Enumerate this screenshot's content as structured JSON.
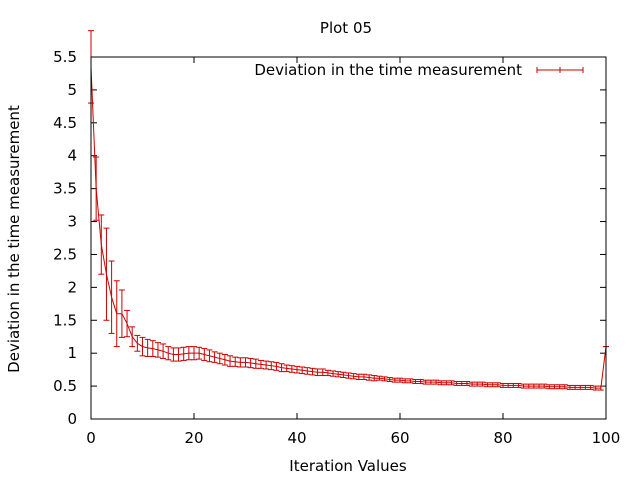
{
  "chart_data": {
    "type": "line",
    "title": "Plot 05",
    "xlabel": "Iteration Values",
    "ylabel": "Deviation in the time measurement",
    "xlim": [
      0,
      100
    ],
    "ylim": [
      0,
      5.5
    ],
    "xticks": [
      "0",
      "20",
      "40",
      "60",
      "80",
      "100"
    ],
    "yticks": [
      "0",
      "0.5",
      "1",
      "1.5",
      "2",
      "2.5",
      "3",
      "3.5",
      "4",
      "4.5",
      "5",
      "5.5"
    ],
    "legend_position": "top-right",
    "series": [
      {
        "name": "Deviation in the time measurement",
        "color": "#cc0000",
        "style": "error bars with connecting line",
        "x": [
          0,
          1,
          2,
          3,
          4,
          5,
          6,
          7,
          8,
          9,
          10,
          11,
          12,
          13,
          14,
          15,
          16,
          17,
          18,
          19,
          20,
          21,
          22,
          23,
          24,
          25,
          26,
          27,
          28,
          29,
          30,
          31,
          32,
          33,
          34,
          35,
          36,
          37,
          38,
          39,
          40,
          41,
          42,
          43,
          44,
          45,
          46,
          47,
          48,
          49,
          50,
          51,
          52,
          53,
          54,
          55,
          56,
          57,
          58,
          59,
          60,
          61,
          62,
          63,
          64,
          65,
          66,
          67,
          68,
          69,
          70,
          71,
          72,
          73,
          74,
          75,
          76,
          77,
          78,
          79,
          80,
          81,
          82,
          83,
          84,
          85,
          86,
          87,
          88,
          89,
          90,
          91,
          92,
          93,
          94,
          95,
          96,
          97,
          98,
          99,
          100
        ],
        "y": [
          5.35,
          3.5,
          2.65,
          2.2,
          1.85,
          1.6,
          1.6,
          1.45,
          1.25,
          1.15,
          1.1,
          1.08,
          1.07,
          1.05,
          1.03,
          1.0,
          0.98,
          0.98,
          0.99,
          1.0,
          1.0,
          1.0,
          0.98,
          0.96,
          0.94,
          0.92,
          0.9,
          0.88,
          0.87,
          0.86,
          0.86,
          0.85,
          0.84,
          0.83,
          0.82,
          0.81,
          0.8,
          0.78,
          0.77,
          0.76,
          0.75,
          0.74,
          0.73,
          0.72,
          0.71,
          0.71,
          0.7,
          0.69,
          0.68,
          0.67,
          0.66,
          0.65,
          0.64,
          0.64,
          0.63,
          0.62,
          0.62,
          0.61,
          0.6,
          0.59,
          0.59,
          0.58,
          0.58,
          0.57,
          0.57,
          0.56,
          0.56,
          0.56,
          0.55,
          0.55,
          0.55,
          0.54,
          0.54,
          0.54,
          0.53,
          0.53,
          0.53,
          0.52,
          0.52,
          0.52,
          0.51,
          0.51,
          0.51,
          0.51,
          0.5,
          0.5,
          0.5,
          0.5,
          0.5,
          0.49,
          0.49,
          0.49,
          0.49,
          0.48,
          0.48,
          0.48,
          0.48,
          0.48,
          0.47,
          0.47,
          1.1
        ],
        "error": [
          0.55,
          0.48,
          0.45,
          0.7,
          0.55,
          0.5,
          0.36,
          0.2,
          0.15,
          0.12,
          0.14,
          0.13,
          0.12,
          0.11,
          0.11,
          0.1,
          0.1,
          0.1,
          0.1,
          0.1,
          0.1,
          0.09,
          0.09,
          0.09,
          0.08,
          0.08,
          0.08,
          0.08,
          0.07,
          0.07,
          0.07,
          0.07,
          0.07,
          0.06,
          0.06,
          0.06,
          0.06,
          0.06,
          0.05,
          0.05,
          0.05,
          0.05,
          0.05,
          0.05,
          0.05,
          0.05,
          0.04,
          0.04,
          0.04,
          0.04,
          0.04,
          0.04,
          0.04,
          0.04,
          0.04,
          0.04,
          0.03,
          0.03,
          0.03,
          0.03,
          0.03,
          0.03,
          0.03,
          0.03,
          0.03,
          0.03,
          0.03,
          0.03,
          0.03,
          0.03,
          0.03,
          0.03,
          0.03,
          0.03,
          0.03,
          0.03,
          0.03,
          0.03,
          0.03,
          0.03,
          0.03,
          0.03,
          0.03,
          0.03,
          0.03,
          0.03,
          0.03,
          0.03,
          0.03,
          0.03,
          0.03,
          0.03,
          0.03,
          0.03,
          0.03,
          0.03,
          0.03,
          0.03,
          0.03,
          0.03,
          0.0
        ]
      }
    ]
  }
}
